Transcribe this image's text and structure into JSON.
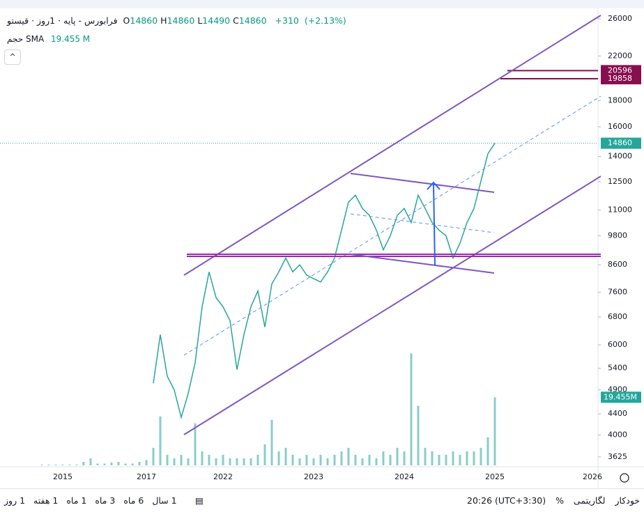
{
  "chart_data": {
    "type": "line",
    "title": "فرابورس - پایه · 1روز · قیستو",
    "ohlc": [
      {
        "label": "O",
        "value": 14860
      },
      {
        "label": "H",
        "value": 14860
      },
      {
        "label": "L",
        "value": 14490
      },
      {
        "label": "C",
        "value": 14860
      }
    ],
    "change": {
      "value": 310,
      "label": "+310"
    },
    "change_pct": {
      "value": 2.13,
      "label": "(+2.13%)"
    },
    "volume_title": "حجم",
    "sma_title": "SMA",
    "volume_legend_value": {
      "value": 19.455,
      "label": "19.455 M"
    },
    "volume_tag": {
      "value": 19.455,
      "label": "19.455M"
    },
    "categories": [
      null,
      null,
      null,
      "2015",
      null,
      null,
      null,
      null,
      null,
      null,
      null,
      null,
      null,
      null,
      null,
      "2017",
      null,
      null,
      null,
      null,
      null,
      null,
      null,
      null,
      null,
      null,
      "2022",
      null,
      null,
      null,
      null,
      null,
      null,
      null,
      null,
      null,
      null,
      null,
      null,
      "2023",
      null,
      null,
      null,
      null,
      null,
      null,
      null,
      null,
      null,
      null,
      null,
      null,
      "2024",
      null,
      null,
      null,
      null,
      null,
      null,
      null,
      null,
      null,
      null,
      null,
      null,
      "2025",
      null,
      null,
      null,
      null,
      null,
      null,
      null,
      null,
      null,
      null,
      null,
      null,
      null,
      "2026"
    ],
    "series": [
      {
        "name": "قیستو",
        "color": "#26a69a",
        "values": [
          null,
          null,
          null,
          null,
          null,
          null,
          null,
          null,
          null,
          null,
          null,
          null,
          null,
          null,
          null,
          null,
          5050,
          6280,
          5210,
          4900,
          4330,
          4820,
          5540,
          7120,
          8330,
          7420,
          7120,
          6690,
          5370,
          6280,
          7120,
          7650,
          6500,
          7890,
          8330,
          8870,
          8330,
          8600,
          8210,
          8080,
          7960,
          8330,
          8870,
          10050,
          11400,
          11760,
          11080,
          10740,
          10050,
          9200,
          9800,
          10740,
          11080,
          10400,
          11760,
          11080,
          10400,
          10050,
          9800,
          8870,
          9480,
          10400,
          11080,
          12530,
          14170,
          14860,
          null,
          null,
          null,
          null,
          null,
          null,
          null,
          null,
          null,
          null,
          null,
          null,
          null,
          null
        ]
      },
      {
        "name": "حجم",
        "color": "#26a69a",
        "axis": "y2",
        "values": [
          0.2,
          0.2,
          0.2,
          0.2,
          0.2,
          0.2,
          1,
          2,
          0.5,
          0.5,
          0.8,
          1,
          0.5,
          0.5,
          1,
          1.5,
          5,
          14,
          3,
          2,
          3,
          2,
          12,
          4,
          3,
          2,
          3,
          2,
          2,
          2,
          2,
          3,
          6,
          13,
          4,
          5,
          3,
          2,
          3,
          2,
          3,
          2,
          3,
          4,
          5,
          3,
          2,
          3,
          2,
          4,
          3,
          5,
          4,
          32,
          17,
          5,
          4,
          3,
          3,
          4,
          3,
          4,
          4,
          5,
          8,
          19.455,
          null,
          null,
          null,
          null,
          null,
          null,
          null,
          null,
          null,
          null,
          null,
          null,
          null,
          null
        ]
      }
    ],
    "log_scale": true,
    "ylim": [
      3490,
      27000
    ],
    "yticks": [
      3625,
      4000,
      4400,
      4900,
      5400,
      6000,
      6800,
      7600,
      8600,
      9800,
      11000,
      12500,
      14000,
      16000,
      18000,
      22000,
      26000
    ],
    "y2lim": [
      0,
      130
    ],
    "levels": [
      20596,
      19858
    ],
    "level_color": "#880e4f",
    "toolbar_left": [
      "1 روز",
      "1 هفته",
      "1 ماه",
      "3 ماه",
      "6 ماه",
      "1 سال"
    ],
    "toolbar_right": [
      "20:26 (UTC+3:30)",
      "%",
      "لگاریتمی",
      "خودکار"
    ]
  }
}
